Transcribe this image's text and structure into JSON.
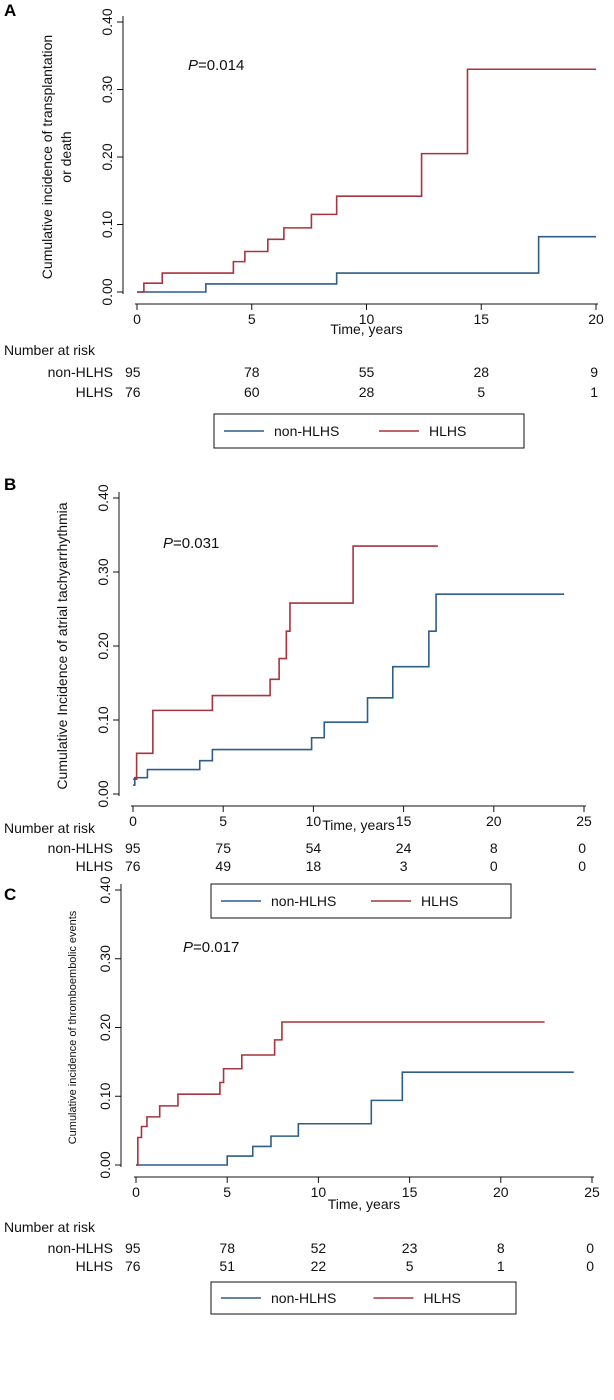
{
  "colors": {
    "non_hlhs": "#2f5d8a",
    "hlhs": "#a8343f"
  },
  "chart_data": [
    {
      "type": "line",
      "panel": "A",
      "ylabel": "Cumulative incidence of transplantation or death",
      "ylabel_lines": [
        "Cumulative incidence of transplantation",
        "or death"
      ],
      "xlabel": "Time, years",
      "p_prefix": "P",
      "p_suffix": "=0.014",
      "xlim": [
        0,
        20
      ],
      "ylim": [
        0,
        0.4
      ],
      "xticks": [
        0,
        5,
        10,
        15,
        20
      ],
      "xtick_labels": [
        "0",
        "5",
        "10",
        "15",
        "20"
      ],
      "yticks": [
        0,
        0.1,
        0.2,
        0.3,
        0.4
      ],
      "ytick_labels": [
        "0.00",
        "0.10",
        "0.20",
        "0.30",
        "0.40"
      ],
      "series": [
        {
          "name": "non-HLHS",
          "x": [
            0,
            3,
            8.7,
            17.5,
            20
          ],
          "y": [
            0,
            0.012,
            0.028,
            0.082,
            0.082
          ]
        },
        {
          "name": "HLHS",
          "x": [
            0,
            0.3,
            1.1,
            4.2,
            4.7,
            5.7,
            6.4,
            7.6,
            8.7,
            12.4,
            14.4,
            20
          ],
          "y": [
            0,
            0.013,
            0.028,
            0.045,
            0.06,
            0.078,
            0.095,
            0.115,
            0.142,
            0.205,
            0.33,
            0.33
          ]
        }
      ],
      "risk_title": "Number at risk",
      "risk_times": [
        0,
        5,
        10,
        15,
        20
      ],
      "risk_rows": [
        {
          "label": "non-HLHS",
          "values": [
            "95",
            "78",
            "55",
            "28",
            "9"
          ]
        },
        {
          "label": "HLHS",
          "values": [
            "76",
            "60",
            "28",
            "5",
            "1"
          ]
        }
      ],
      "legend": [
        "non-HLHS",
        "HLHS"
      ]
    },
    {
      "type": "line",
      "panel": "B",
      "ylabel": "Cumulative Incidence of atrial tachyarrhythmia",
      "ylabel_lines": [
        "Cumulative Incidence of atrial tachyarrhythmia"
      ],
      "xlabel": "Time, years",
      "p_prefix": "P",
      "p_suffix": "=0.031",
      "xlim": [
        0,
        25
      ],
      "ylim": [
        0,
        0.4
      ],
      "xticks": [
        0,
        5,
        10,
        15,
        20,
        25
      ],
      "xtick_labels": [
        "0",
        "5",
        "10",
        "15",
        "20",
        "25"
      ],
      "yticks": [
        0,
        0.1,
        0.2,
        0.3,
        0.4
      ],
      "ytick_labels": [
        "0.00",
        "0.10",
        "0.20",
        "0.30",
        "0.40"
      ],
      "series": [
        {
          "name": "non-HLHS",
          "x": [
            0,
            0.1,
            0.8,
            3.7,
            4.4,
            9.9,
            10.6,
            13.0,
            14.4,
            16.4,
            16.8,
            23.9
          ],
          "y": [
            0.012,
            0.022,
            0.033,
            0.045,
            0.06,
            0.076,
            0.097,
            0.13,
            0.172,
            0.22,
            0.27,
            0.27
          ]
        },
        {
          "name": "HLHS",
          "x": [
            0,
            0.2,
            1.1,
            4.4,
            7.6,
            8.1,
            8.5,
            8.7,
            12.2,
            16.9
          ],
          "y": [
            0.02,
            0.055,
            0.113,
            0.133,
            0.155,
            0.183,
            0.22,
            0.258,
            0.335,
            0.335
          ]
        }
      ],
      "risk_title": "Number at risk",
      "risk_times": [
        0,
        5,
        10,
        15,
        20,
        25
      ],
      "risk_rows": [
        {
          "label": "non-HLHS",
          "values": [
            "95",
            "75",
            "54",
            "24",
            "8",
            "0"
          ]
        },
        {
          "label": "HLHS",
          "values": [
            "76",
            "49",
            "18",
            "3",
            "0",
            "0"
          ]
        }
      ],
      "legend": [
        "non-HLHS",
        "HLHS"
      ]
    },
    {
      "type": "line",
      "panel": "C",
      "ylabel": "Cumulative incidence of thromboembolic events",
      "ylabel_lines": [
        "Cumulative incidence of thromboembolic events"
      ],
      "xlabel": "Time, years",
      "p_prefix": "P",
      "p_suffix": "=0.017",
      "xlim": [
        0,
        25
      ],
      "ylim": [
        0,
        0.4
      ],
      "xticks": [
        0,
        5,
        10,
        15,
        20,
        25
      ],
      "xtick_labels": [
        "0",
        "5",
        "10",
        "15",
        "20",
        "25"
      ],
      "yticks": [
        0,
        0.1,
        0.2,
        0.3,
        0.4
      ],
      "ytick_labels": [
        "0.00",
        "0.10",
        "0.20",
        "0.30",
        "0.40"
      ],
      "series": [
        {
          "name": "non-HLHS",
          "x": [
            0,
            5.0,
            6.4,
            7.4,
            8.9,
            12.9,
            14.6,
            24.0
          ],
          "y": [
            0,
            0.013,
            0.027,
            0.042,
            0.06,
            0.094,
            0.135,
            0.135
          ]
        },
        {
          "name": "HLHS",
          "x": [
            0,
            0.1,
            0.3,
            0.6,
            1.3,
            2.3,
            4.6,
            4.8,
            5.8,
            7.6,
            8.0,
            22.4
          ],
          "y": [
            0,
            0.04,
            0.056,
            0.07,
            0.086,
            0.103,
            0.12,
            0.14,
            0.16,
            0.182,
            0.208,
            0.208
          ]
        }
      ],
      "risk_title": "Number at risk",
      "risk_times": [
        0,
        5,
        10,
        15,
        20,
        25
      ],
      "risk_rows": [
        {
          "label": "non-HLHS",
          "values": [
            "95",
            "78",
            "52",
            "23",
            "8",
            "0"
          ]
        },
        {
          "label": "HLHS",
          "values": [
            "76",
            "51",
            "22",
            "5",
            "1",
            "0"
          ]
        }
      ],
      "legend": [
        "non-HLHS",
        "HLHS"
      ]
    }
  ]
}
